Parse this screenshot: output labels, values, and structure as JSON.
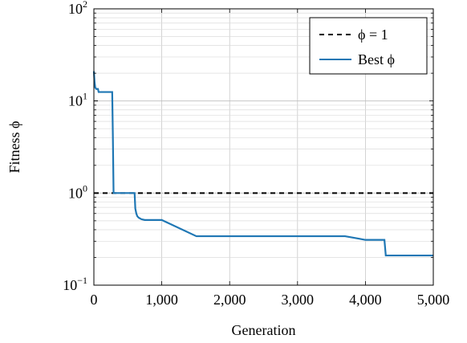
{
  "chart_data": {
    "type": "line",
    "xlabel": "Generation",
    "ylabel": "Fitness ϕ",
    "xlim": [
      0,
      5000
    ],
    "ylim": [
      0.1,
      100
    ],
    "yscale": "log",
    "grid": true,
    "legend_position": "top-right",
    "x_ticks": [
      {
        "value": 0,
        "label": "0"
      },
      {
        "value": 1000,
        "label": "1,000"
      },
      {
        "value": 2000,
        "label": "2,000"
      },
      {
        "value": 3000,
        "label": "3,000"
      },
      {
        "value": 4000,
        "label": "4,000"
      },
      {
        "value": 5000,
        "label": "5,000"
      }
    ],
    "y_ticks": [
      {
        "value": 0.1,
        "base": "10",
        "exp": "−1"
      },
      {
        "value": 1,
        "base": "10",
        "exp": "0"
      },
      {
        "value": 10,
        "base": "10",
        "exp": "1"
      },
      {
        "value": 100,
        "base": "10",
        "exp": "2"
      }
    ],
    "series": [
      {
        "name": "ϕ = 1",
        "style": "dashed",
        "color": "#000000",
        "x": [
          0,
          5000
        ],
        "y": [
          1,
          1
        ]
      },
      {
        "name": "Best ϕ",
        "style": "solid",
        "color": "#1f77b4",
        "x": [
          0,
          10,
          20,
          35,
          60,
          70,
          90,
          270,
          280,
          290,
          600,
          610,
          625,
          640,
          660,
          700,
          750,
          800,
          1000,
          1510,
          1530,
          2000,
          3000,
          3700,
          3750,
          3800,
          3900,
          4000,
          4280,
          4300,
          5000
        ],
        "y": [
          21,
          16,
          14,
          13.5,
          13.5,
          12.5,
          12.5,
          12.5,
          4,
          1,
          1,
          0.68,
          0.6,
          0.56,
          0.54,
          0.52,
          0.51,
          0.51,
          0.51,
          0.34,
          0.34,
          0.34,
          0.34,
          0.34,
          0.335,
          0.33,
          0.32,
          0.31,
          0.31,
          0.21,
          0.21
        ]
      }
    ]
  }
}
